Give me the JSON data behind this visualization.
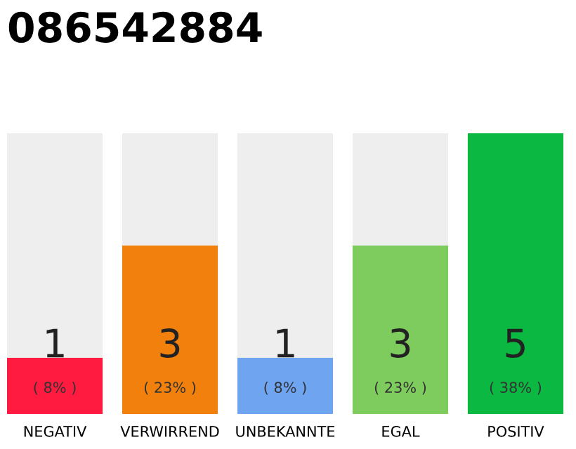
{
  "chart_data": {
    "type": "bar",
    "title": "086542884",
    "categories": [
      "NEGATIV",
      "VERWIRREND",
      "UNBEKANNTE",
      "EGAL",
      "POSITIV"
    ],
    "stacked": true,
    "ylim": [
      0,
      5
    ],
    "tick_labels": "x",
    "grid": false,
    "legend": false,
    "series": [
      {
        "colors": [
          "#ff1a40",
          "#f2800d",
          "#6fa4f0",
          "#7fcc5e",
          "#0bb841"
        ],
        "values": [
          1,
          3,
          1,
          3,
          5
        ],
        "value_labels": [
          "1",
          "3",
          "1",
          "3",
          "5"
        ]
      },
      {
        "color": "#eeeeee",
        "values": [
          4,
          2,
          4,
          2,
          0
        ]
      }
    ],
    "annotations": [
      "( 8% )",
      "( 23% )",
      "( 8% )",
      "( 23% )",
      "( 38% )"
    ]
  }
}
